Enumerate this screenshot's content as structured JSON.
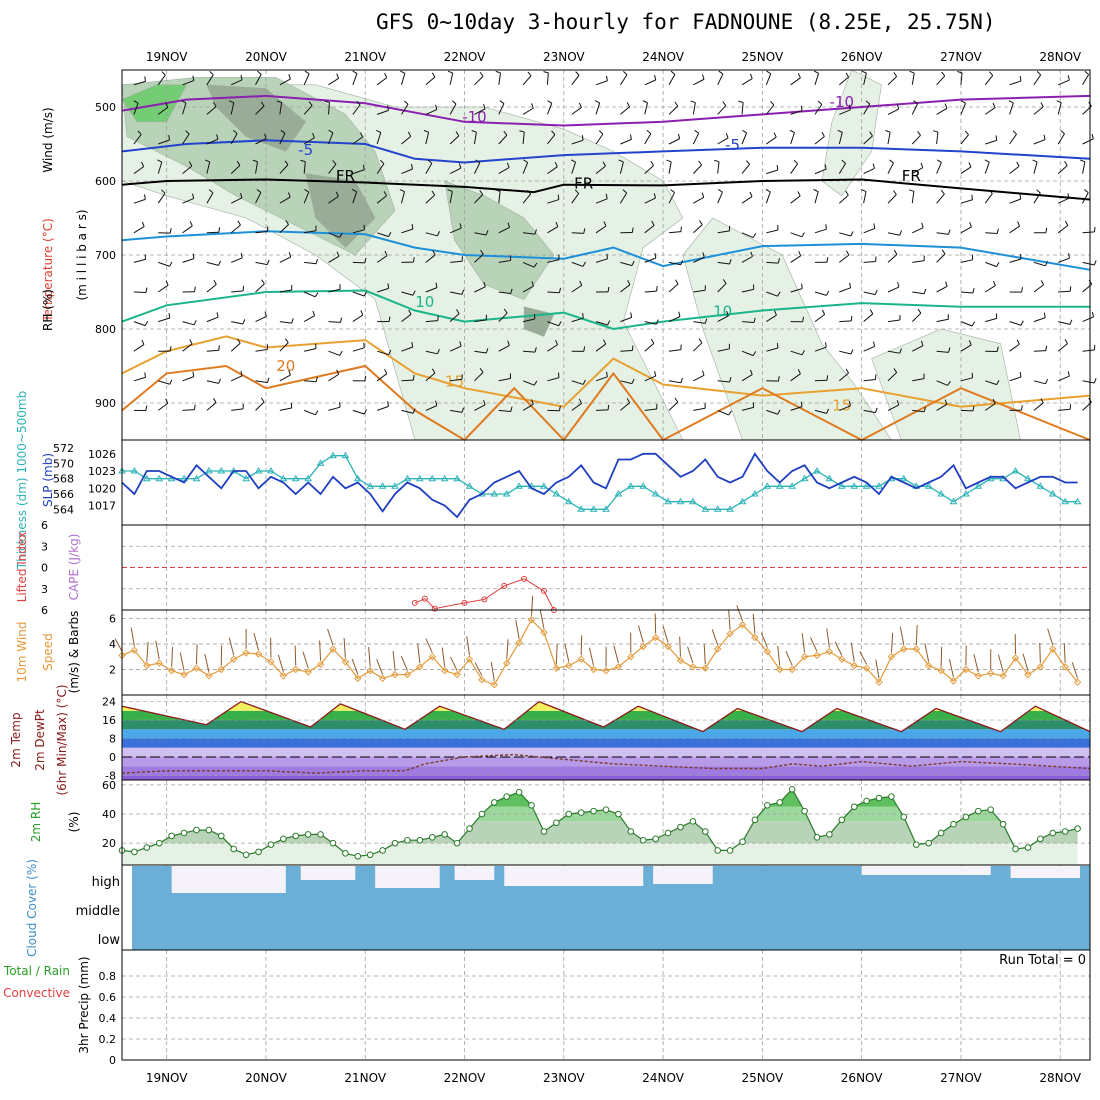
{
  "title": "GFS 0~10day 3-hourly for FADNOUNE (8.25E, 25.75N)",
  "chart_data": {
    "type": "line",
    "dates": [
      "19NOV",
      "20NOV",
      "21NOV",
      "22NOV",
      "23NOV",
      "24NOV",
      "25NOV",
      "26NOV",
      "27NOV",
      "28NOV"
    ],
    "x_range_days": [
      18.55,
      28.3
    ],
    "panels": {
      "upper": {
        "labels": [
          "Wind (m/s)",
          "Temperature (°C)",
          "(m i l l i b a r s)",
          "RH (%)"
        ],
        "ylim": [
          950,
          450
        ],
        "yticks": [
          500,
          600,
          700,
          800,
          900
        ],
        "contours": [
          {
            "label": "-10",
            "color": "#8a1fb0",
            "x": [
              18.55,
              19.2,
              20,
              21,
              22,
              23,
              24,
              25,
              26,
              27,
              28.3
            ],
            "y": [
              505,
              490,
              485,
              495,
              520,
              525,
              520,
              510,
              500,
              490,
              485
            ]
          },
          {
            "label": "-5",
            "color": "#2244cc",
            "x": [
              18.55,
              19.2,
              20,
              21,
              21.5,
              22,
              23,
              24,
              25,
              26,
              27,
              28.3
            ],
            "y": [
              560,
              550,
              545,
              550,
              570,
              575,
              565,
              560,
              555,
              555,
              560,
              570
            ]
          },
          {
            "label": "FR",
            "color": "#000000",
            "x": [
              18.55,
              19,
              20,
              21,
              22,
              22.7,
              23,
              24,
              25,
              26,
              27,
              28.3
            ],
            "y": [
              605,
              600,
              598,
              602,
              608,
              615,
              605,
              606,
              600,
              598,
              610,
              625
            ]
          },
          {
            "label": "5",
            "color": "#1e90d8",
            "x": [
              18.55,
              19,
              20,
              21,
              21.5,
              22,
              23,
              23.5,
              24,
              25,
              26,
              27,
              28.3
            ],
            "y": [
              680,
              675,
              668,
              672,
              690,
              700,
              705,
              690,
              715,
              688,
              685,
              690,
              720
            ]
          },
          {
            "label": "10",
            "color": "#1ab58a",
            "x": [
              18.55,
              19,
              20,
              21,
              21.5,
              22,
              23,
              23.5,
              24,
              25,
              26,
              27,
              28.3
            ],
            "y": [
              790,
              768,
              750,
              748,
              775,
              790,
              778,
              800,
              790,
              775,
              765,
              770,
              770
            ]
          },
          {
            "label": "15",
            "color": "#e8a030",
            "x": [
              18.55,
              19,
              19.6,
              20,
              21,
              21.5,
              22,
              23,
              23.5,
              24,
              25,
              26,
              27,
              28.3
            ],
            "y": [
              860,
              830,
              810,
              825,
              815,
              860,
              880,
              905,
              840,
              875,
              890,
              880,
              905,
              890
            ]
          },
          {
            "label": "20",
            "color": "#e07a20",
            "x": [
              18.55,
              19,
              19.6,
              20,
              21,
              21.5,
              22,
              22.5,
              23,
              23.5,
              24,
              25,
              26,
              27,
              28.3
            ],
            "y": [
              910,
              860,
              850,
              880,
              850,
              910,
              950,
              880,
              950,
              860,
              950,
              880,
              950,
              880,
              950
            ]
          }
        ],
        "contour_labels": [
          {
            "text": "-10",
            "x": 22.1,
            "y": 520,
            "color": "#8a1fb0"
          },
          {
            "text": "-10",
            "x": 25.8,
            "y": 500,
            "color": "#8a1fb0"
          },
          {
            "text": "-5",
            "x": 20.4,
            "y": 565,
            "color": "#2244cc"
          },
          {
            "text": "-5",
            "x": 24.7,
            "y": 558,
            "color": "#2244cc"
          },
          {
            "text": "FR",
            "x": 20.8,
            "y": 600,
            "color": "#000000"
          },
          {
            "text": "FR",
            "x": 23.2,
            "y": 610,
            "color": "#000000"
          },
          {
            "text": "FR",
            "x": 26.5,
            "y": 600,
            "color": "#000000"
          },
          {
            "text": "10",
            "x": 21.6,
            "y": 770,
            "color": "#1ab58a"
          },
          {
            "text": "10",
            "x": 24.6,
            "y": 783,
            "color": "#1ab58a"
          },
          {
            "text": "20",
            "x": 20.2,
            "y": 857,
            "color": "#e07a20"
          },
          {
            "text": "15",
            "x": 21.9,
            "y": 878,
            "color": "#e8a030"
          },
          {
            "text": "15",
            "x": 25.8,
            "y": 910,
            "color": "#e8a030"
          }
        ]
      },
      "slp": {
        "label_left": "Thickness (dm) 1000~500mb",
        "label_right": "SLP (mb)",
        "left_ticks": [
          564,
          566,
          568,
          570,
          572
        ],
        "right_ticks": [
          1017,
          1020,
          1023,
          1026
        ],
        "ylim_right": [
          1015,
          1027
        ],
        "ylim_left": [
          563,
          572
        ],
        "slp": [
          1021,
          1019,
          1023,
          1023,
          1022,
          1021,
          1024,
          1022,
          1020,
          1023,
          1023,
          1020,
          1022,
          1021,
          1019,
          1021,
          1019,
          1022,
          1020,
          1021,
          1019,
          1016,
          1019,
          1021,
          1020,
          1018,
          1017,
          1015,
          1018,
          1019,
          1021,
          1022,
          1023,
          1020,
          1019,
          1021,
          1022,
          1024,
          1021,
          1020,
          1025,
          1025,
          1026,
          1026,
          1024,
          1022,
          1023,
          1025,
          1022,
          1021,
          1022,
          1026,
          1023,
          1021,
          1023,
          1024,
          1021,
          1020,
          1021,
          1022,
          1021,
          1019,
          1022,
          1021,
          1020,
          1021,
          1022,
          1024,
          1020,
          1021,
          1022,
          1022,
          1020,
          1021,
          1022,
          1022,
          1021,
          1021
        ],
        "thickness": [
          569,
          569,
          568,
          568,
          568,
          568,
          568,
          569,
          569,
          569,
          568,
          569,
          569,
          568,
          568,
          568,
          570,
          571,
          571,
          568,
          567,
          567,
          567,
          568,
          568,
          568,
          568,
          568,
          567,
          566,
          566,
          566,
          567,
          567,
          567,
          566,
          565,
          564,
          564,
          564,
          566,
          567,
          567,
          566,
          565,
          565,
          565,
          564,
          564,
          564,
          565,
          566,
          567,
          567,
          567,
          568,
          569,
          568,
          567,
          567,
          567,
          567,
          568,
          568,
          567,
          567,
          566,
          565,
          566,
          567,
          568,
          568,
          569,
          568,
          567,
          566,
          565,
          565
        ]
      },
      "cape": {
        "label_left": "Lifted Index",
        "label_right": "CAPE (J/kg)",
        "yticks": [
          -6,
          -3,
          0,
          3,
          6
        ],
        "li_x": [
          21.5,
          21.6,
          21.7,
          22,
          22.2,
          22.4,
          22.6,
          22.8,
          22.9
        ],
        "li_y": [
          5,
          4.4,
          5.8,
          5,
          4.5,
          2.6,
          1.6,
          3.3,
          6
        ]
      },
      "wind10m": {
        "labels": [
          "10m Wind",
          "Speed",
          "(m/s) & Barbs"
        ],
        "yticks": [
          2,
          4,
          6
        ],
        "ylim": [
          0,
          6.5
        ],
        "speed": [
          3.1,
          3.5,
          2.3,
          2.5,
          1.9,
          1.6,
          2.1,
          1.5,
          2.0,
          2.8,
          3.3,
          3.2,
          2.6,
          1.5,
          2.0,
          1.8,
          2.4,
          3.6,
          2.6,
          1.3,
          1.9,
          1.3,
          1.6,
          1.6,
          2.2,
          3.0,
          1.9,
          1.6,
          2.8,
          1.2,
          0.8,
          2.5,
          4.1,
          5.9,
          4.9,
          2.1,
          2.3,
          2.8,
          2.0,
          1.9,
          2.2,
          3.0,
          3.8,
          4.5,
          3.8,
          2.7,
          2.2,
          2.1,
          3.6,
          4.8,
          5.5,
          4.5,
          3.4,
          2.0,
          2.0,
          3.0,
          3.1,
          3.4,
          2.8,
          2.3,
          2.1,
          1.0,
          3.0,
          3.6,
          3.6,
          2.3,
          1.9,
          1.1,
          2.0,
          1.5,
          1.7,
          1.5,
          2.9,
          1.6,
          2.2,
          3.6,
          2.2,
          1.0
        ]
      },
      "temp2m": {
        "labels": [
          "2m Temp",
          "2m DewPt",
          "(6hr Min/Max) (°C)"
        ],
        "yticks": [
          -8,
          0,
          8,
          16,
          24
        ],
        "ylim": [
          -10,
          26
        ],
        "temp_x": [
          18.55,
          19.4,
          19.75,
          20.45,
          20.75,
          21.4,
          21.75,
          22.4,
          22.75,
          23.4,
          23.75,
          24.4,
          24.75,
          25.4,
          25.75,
          26.4,
          26.75,
          27.4,
          27.75,
          28.3
        ],
        "temp_y": [
          22,
          14,
          24,
          13,
          23,
          12,
          22,
          12,
          24,
          13,
          22,
          11,
          21,
          11,
          21,
          11,
          21,
          11,
          22,
          11
        ],
        "dew_x": [
          18.55,
          19,
          20,
          20.5,
          21,
          21.4,
          21.6,
          22,
          22.5,
          23,
          23.5,
          24,
          24.5,
          25,
          25.3,
          25.6,
          26,
          26.5,
          27,
          27.5,
          28.3
        ],
        "dew_y": [
          -7,
          -6,
          -6,
          -7,
          -6,
          -6,
          -3,
          0,
          1,
          -1,
          -3,
          -4,
          -5,
          -5,
          -3,
          -4,
          -2,
          -4,
          -2,
          -3,
          -5
        ]
      },
      "rh2m": {
        "labels": [
          "2m RH",
          "(%)"
        ],
        "yticks": [
          20,
          40,
          60
        ],
        "ylim": [
          5,
          62
        ],
        "rh": [
          15,
          14,
          17,
          20,
          25,
          27,
          29,
          29,
          25,
          16,
          12,
          14,
          19,
          23,
          25,
          26,
          26,
          20,
          13,
          11,
          12,
          15,
          20,
          22,
          22,
          24,
          26,
          20,
          30,
          40,
          48,
          52,
          55,
          46,
          28,
          34,
          40,
          41,
          42,
          43,
          40,
          28,
          22,
          23,
          27,
          31,
          35,
          28,
          15,
          15,
          21,
          36,
          46,
          48,
          57,
          42,
          24,
          26,
          36,
          45,
          49,
          51,
          52,
          38,
          19,
          20,
          27,
          33,
          38,
          42,
          43,
          33,
          16,
          17,
          23,
          27,
          28,
          30
        ]
      },
      "cloud": {
        "label": "Cloud Cover (%)",
        "levels": [
          "high",
          "middle",
          "low"
        ]
      },
      "precip": {
        "labels": [
          "Total / Rain",
          "Convective",
          "3hr Precip (mm)"
        ],
        "yticks": [
          0,
          0.2,
          0.4,
          0.6,
          0.8
        ],
        "ylim": [
          0,
          1
        ],
        "run_total": "Run Total = 0"
      }
    }
  },
  "colors": {
    "grid": "#a0a0a0",
    "rh_light": "#e4f1e4",
    "rh_mid": "#b9d3b9",
    "rh_dark": "#98ac98",
    "rh_green": "#74cc74",
    "slp": "#1f3fbf",
    "thickness": "#2cb3b8",
    "wind": "#e39a3a",
    "rh2m": "#2aa02a",
    "cloud": "#6baed6",
    "cloud_bg": "#f6f2fa"
  }
}
